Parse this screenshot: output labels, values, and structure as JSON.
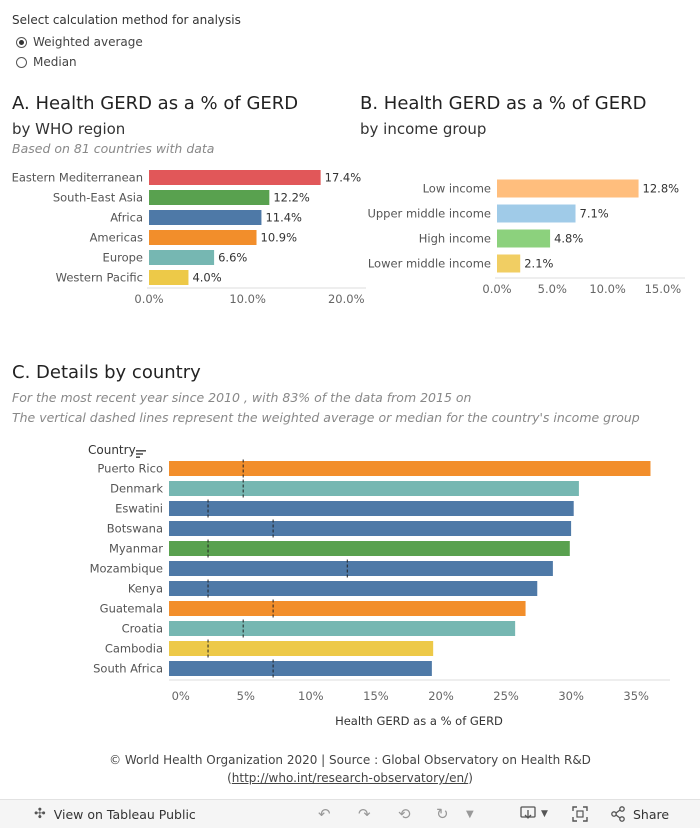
{
  "control": {
    "title": "Select calculation method for analysis",
    "options": [
      {
        "label": "Weighted average",
        "selected": true
      },
      {
        "label": "Median",
        "selected": false
      }
    ]
  },
  "panel_a": {
    "title": "A. Health GERD as a % of GERD",
    "subtitle": "by WHO region",
    "note": "Based on  81 countries with data"
  },
  "panel_b": {
    "title": "B. Health GERD as a % of GERD",
    "subtitle": "by income group"
  },
  "panel_c": {
    "title": "C. Details by country",
    "note1": "For the most recent year since 2010 , with 83% of the data from 2015 on",
    "note2": "The vertical dashed lines represent the weighted average or median for the country's income group"
  },
  "chart_data": [
    {
      "type": "bar",
      "orientation": "horizontal",
      "categories": [
        "Eastern Mediterranean",
        "South-East Asia",
        "Africa",
        "Americas",
        "Europe",
        "Western Pacific"
      ],
      "values": [
        17.4,
        12.2,
        11.4,
        10.9,
        6.6,
        4.0
      ],
      "data_labels": [
        "17.4%",
        "12.2%",
        "11.4%",
        "10.9%",
        "6.6%",
        "4.0%"
      ],
      "colors": [
        "#e15759",
        "#59a14f",
        "#4e79a7",
        "#f28e2b",
        "#76b7b2",
        "#edc948"
      ],
      "xlim": [
        0,
        22
      ],
      "ticks": [
        0,
        10,
        20
      ],
      "tick_labels": [
        "0.0%",
        "10.0%",
        "20.0%"
      ],
      "grid": false
    },
    {
      "type": "bar",
      "orientation": "horizontal",
      "categories": [
        "Low income",
        "Upper middle income",
        "High income",
        "Lower middle income"
      ],
      "values": [
        12.8,
        7.1,
        4.8,
        2.1
      ],
      "data_labels": [
        "12.8%",
        "7.1%",
        "4.8%",
        "2.1%"
      ],
      "colors": [
        "#ffbe7d",
        "#a0cbe8",
        "#8cd17d",
        "#f1ce63"
      ],
      "xlim": [
        0,
        17
      ],
      "ticks": [
        0,
        5,
        10,
        15
      ],
      "tick_labels": [
        "0.0%",
        "5.0%",
        "10.0%",
        "15.0%"
      ],
      "grid": false
    },
    {
      "type": "bar",
      "orientation": "horizontal",
      "column_header": "Country",
      "xlabel": "Health GERD as a % of GERD",
      "categories": [
        "Puerto Rico",
        "Denmark",
        "Eswatini",
        "Botswana",
        "Myanmar",
        "Mozambique",
        "Kenya",
        "Guatemala",
        "Croatia",
        "Cambodia",
        "South Africa"
      ],
      "values": [
        36.1,
        30.6,
        30.2,
        30.0,
        29.9,
        28.6,
        27.4,
        26.5,
        25.7,
        19.4,
        19.3
      ],
      "colors": [
        "#f28e2b",
        "#76b7b2",
        "#4e79a7",
        "#4e79a7",
        "#59a14f",
        "#4e79a7",
        "#4e79a7",
        "#f28e2b",
        "#76b7b2",
        "#edc948",
        "#4e79a7"
      ],
      "reference_lines": [
        4.8,
        4.8,
        2.1,
        7.1,
        2.1,
        12.8,
        2.1,
        7.1,
        4.8,
        2.1,
        7.1
      ],
      "xlim": [
        -0.9,
        37.6
      ],
      "ticks": [
        0,
        5,
        10,
        15,
        20,
        25,
        30,
        35
      ],
      "tick_labels": [
        "0%",
        "5%",
        "10%",
        "15%",
        "20%",
        "25%",
        "30%",
        "35%"
      ],
      "grid": false
    }
  ],
  "footer": {
    "line1": "© World Health Organization 2020 | Source : Global Observatory on Health R&D",
    "link_text": "http://who.int/research-observatory/en/",
    "open_paren": "(",
    "close_paren": ")"
  },
  "toolbar": {
    "view_label": "View on Tableau Public",
    "share_label": "Share"
  }
}
